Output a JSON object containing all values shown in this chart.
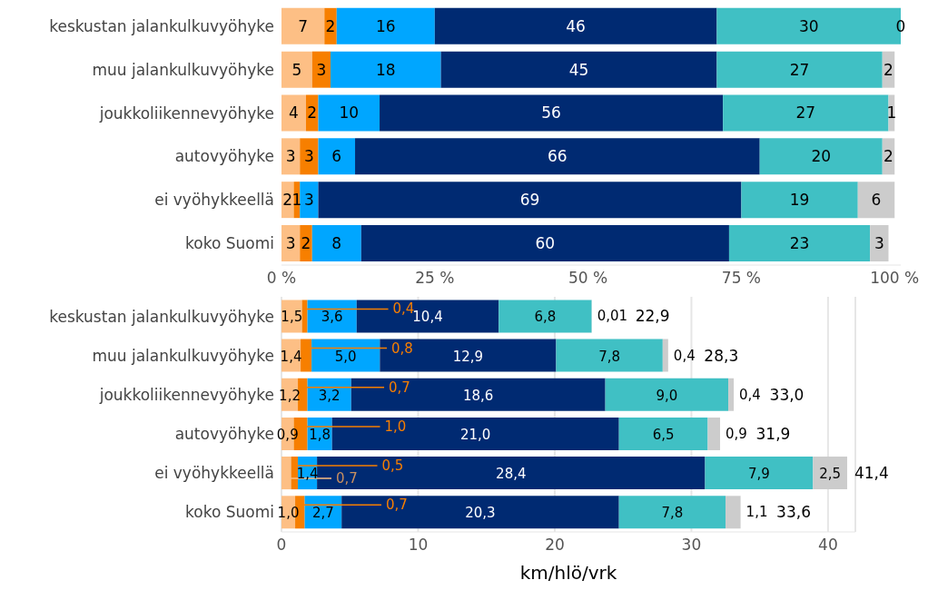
{
  "chart_data": [
    {
      "type": "bar",
      "orientation": "horizontal",
      "stacked": true,
      "data_labels": true,
      "categories": [
        "keskustan jalankulkuvyöhyke",
        "muu jalankulkuvyöhyke",
        "joukkoliikennevyöhyke",
        "autovyöhyke",
        "ei vyöhykkeellä",
        "koko Suomi"
      ],
      "series": [
        {
          "color": "#fdbf85",
          "values": [
            7,
            5,
            4,
            3,
            2,
            3
          ]
        },
        {
          "color": "#f77f00",
          "values": [
            2,
            3,
            2,
            3,
            1,
            2
          ]
        },
        {
          "color": "#00a6ff",
          "values": [
            16,
            18,
            10,
            6,
            3,
            8
          ]
        },
        {
          "color": "#002a72",
          "values": [
            46,
            45,
            56,
            66,
            69,
            60
          ]
        },
        {
          "color": "#40c0c4",
          "values": [
            30,
            27,
            27,
            20,
            19,
            23
          ]
        },
        {
          "color": "#cccccc",
          "values": [
            0,
            2,
            1,
            2,
            6,
            3
          ]
        }
      ],
      "xlim": [
        0,
        101
      ],
      "xticks": [
        {
          "value": 0,
          "label": "0 %"
        },
        {
          "value": 25,
          "label": "25 %"
        },
        {
          "value": 50,
          "label": "50 %"
        },
        {
          "value": 75,
          "label": "75 %"
        },
        {
          "value": 100,
          "label": "100 %"
        }
      ],
      "grid": false
    },
    {
      "type": "bar",
      "orientation": "horizontal",
      "stacked": true,
      "data_labels": true,
      "categories": [
        "keskustan jalankulkuvyöhyke",
        "muu jalankulkuvyöhyke",
        "joukkoliikennevyöhyke",
        "autovyöhyke",
        "ei vyöhykkeellä",
        "koko Suomi"
      ],
      "series": [
        {
          "color": "#fdbf85",
          "values": [
            1.5,
            1.4,
            1.2,
            0.9,
            0.7,
            1.0
          ],
          "value_labels": [
            "1,5",
            "1,4",
            "1,2",
            "0,9",
            "0,7",
            "1,0"
          ]
        },
        {
          "color": "#f77f00",
          "values": [
            0.4,
            0.8,
            0.7,
            1.0,
            0.5,
            0.7
          ],
          "value_labels": [
            "0,4",
            "0,8",
            "0,7",
            "1,0",
            "0,5",
            "0,7"
          ]
        },
        {
          "color": "#00a6ff",
          "values": [
            3.6,
            5.0,
            3.2,
            1.8,
            1.4,
            2.7
          ],
          "value_labels": [
            "3,6",
            "5,0",
            "3,2",
            "1,8",
            "1,4",
            "2,7"
          ]
        },
        {
          "color": "#002a72",
          "values": [
            10.4,
            12.9,
            18.6,
            21.0,
            28.4,
            20.3
          ],
          "value_labels": [
            "10,4",
            "12,9",
            "18,6",
            "21,0",
            "28,4",
            "20,3"
          ]
        },
        {
          "color": "#40c0c4",
          "values": [
            6.8,
            7.8,
            9.0,
            6.5,
            7.9,
            7.8
          ],
          "value_labels": [
            "6,8",
            "7,8",
            "9,0",
            "6,5",
            "7,9",
            "7,8"
          ]
        },
        {
          "color": "#cccccc",
          "values": [
            0.01,
            0.4,
            0.4,
            0.9,
            2.5,
            1.1
          ],
          "value_labels": [
            "0,01",
            "0,4",
            "0,4",
            "0,9",
            "2,5",
            "1,1"
          ]
        }
      ],
      "totals": [
        "22,9",
        "28,3",
        "33,0",
        "31,9",
        "41,4",
        "33,6"
      ],
      "xlim": [
        0,
        42
      ],
      "xticks": [
        0,
        10,
        20,
        30,
        40
      ],
      "xlabel": "km/hlö/vrk",
      "grid": "x"
    }
  ]
}
